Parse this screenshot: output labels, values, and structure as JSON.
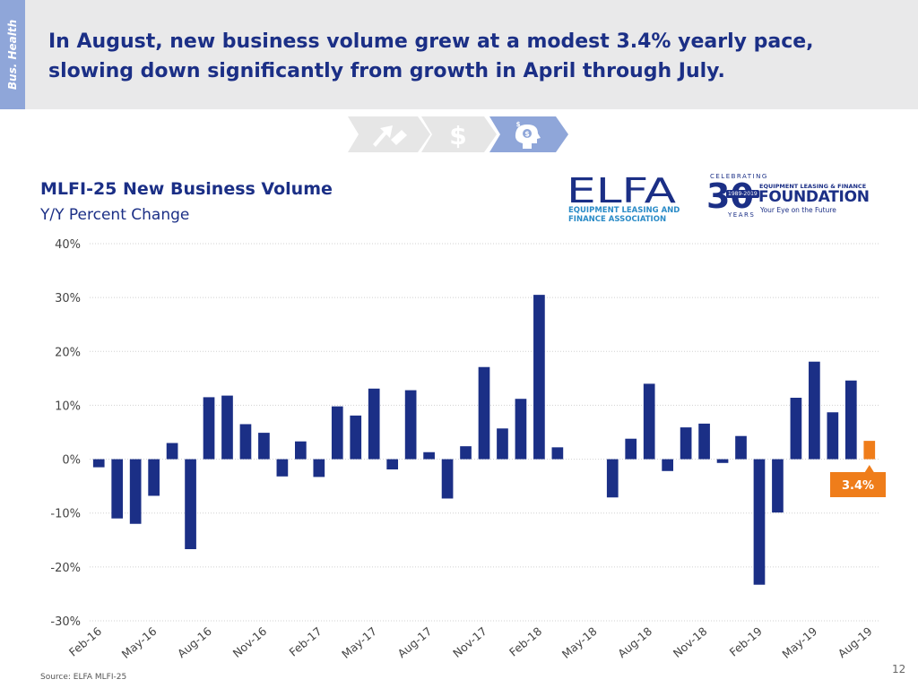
{
  "header": {
    "section_tab": "Bus. Health",
    "headline": "In August, new business volume grew at a modest 3.4% yearly pace, slowing down significantly from growth in April through July."
  },
  "nav": {
    "icons": [
      "trend-arrows-icon",
      "dollar-icon",
      "head-dollar-icon"
    ],
    "dollar_glyph": "$"
  },
  "logos": {
    "elfa": "ELFA",
    "elfa_sub_1": "EQUIPMENT LEASING AND",
    "elfa_sub_2": "FINANCE ASSOCIATION",
    "foundation_celebrating": "CELEBRATING",
    "foundation_30": "30",
    "foundation_seal_years": "1989-2019",
    "foundation_years": "YEARS",
    "foundation_topline": "EQUIPMENT LEASING & FINANCE",
    "foundation_main": "FOUNDATION",
    "foundation_tagline": "Your Eye on the Future"
  },
  "chart_data": {
    "type": "bar",
    "title": "MLFI-25 New Business Volume",
    "subtitle": "Y/Y Percent Change",
    "categories": [
      "Feb-16",
      "Mar-16",
      "Apr-16",
      "May-16",
      "Jun-16",
      "Jul-16",
      "Aug-16",
      "Sep-16",
      "Oct-16",
      "Nov-16",
      "Dec-16",
      "Jan-17",
      "Feb-17",
      "Mar-17",
      "Apr-17",
      "May-17",
      "Jun-17",
      "Jul-17",
      "Aug-17",
      "Sep-17",
      "Oct-17",
      "Nov-17",
      "Dec-17",
      "Jan-18",
      "Feb-18",
      "Mar-18",
      "Apr-18",
      "May-18",
      "Jun-18",
      "Jul-18",
      "Aug-18",
      "Sep-18",
      "Oct-18",
      "Nov-18",
      "Dec-18",
      "Jan-19",
      "Feb-19",
      "Mar-19",
      "Apr-19",
      "May-19",
      "Jun-19",
      "Jul-19",
      "Aug-19"
    ],
    "x_tick_labels": [
      "Feb-16",
      "May-16",
      "Aug-16",
      "Nov-16",
      "Feb-17",
      "May-17",
      "Aug-17",
      "Nov-17",
      "Feb-18",
      "May-18",
      "Aug-18",
      "Nov-18",
      "Feb-19",
      "May-19",
      "Aug-19"
    ],
    "values": [
      -1.5,
      -11,
      -12,
      -6.8,
      3,
      -16.7,
      11.5,
      11.8,
      6.5,
      4.9,
      -3.2,
      3.3,
      -3.3,
      9.8,
      8.1,
      13.1,
      -1.9,
      12.8,
      1.3,
      -7.3,
      2.4,
      17.1,
      5.7,
      11.2,
      30.5,
      2.2,
      0,
      0,
      -7.1,
      3.8,
      14,
      -2.2,
      5.9,
      6.6,
      -0.7,
      4.3,
      -23.3,
      -9.9,
      11.4,
      18.1,
      8.7,
      14.6,
      3.4
    ],
    "highlight_index": 42,
    "highlight_label": "3.4%",
    "ylim": [
      -30,
      40
    ],
    "y_ticks": [
      -30,
      -20,
      -10,
      0,
      10,
      20,
      30,
      40
    ],
    "y_tick_labels": [
      "-30%",
      "-20%",
      "-10%",
      "0%",
      "10%",
      "20%",
      "30%",
      "40%"
    ],
    "grid": true,
    "colors": {
      "bar": "#1b2f86",
      "highlight": "#ef7d1a",
      "grid": "#d0d0d0"
    }
  },
  "footer": {
    "source": "Source: ELFA MLFI-25",
    "page_number": "12"
  }
}
